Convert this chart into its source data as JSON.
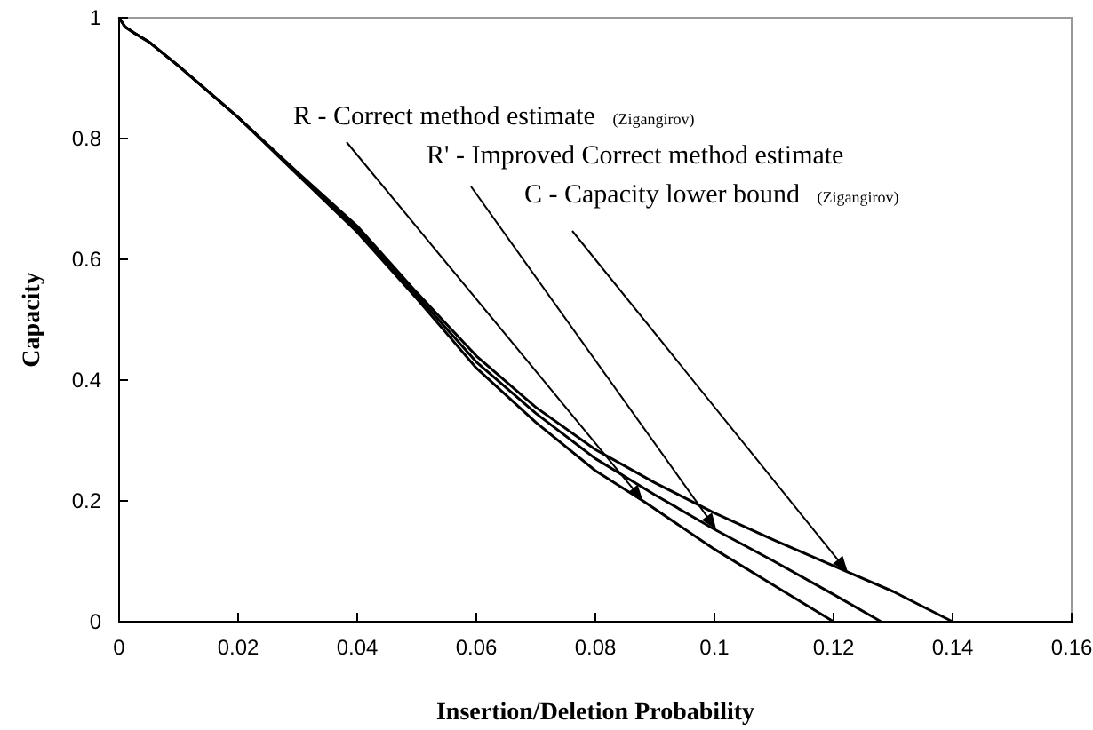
{
  "chart_data": {
    "type": "line",
    "xlabel": "Insertion/Deletion Probability",
    "ylabel": "Capacity",
    "xlim": [
      0,
      0.16
    ],
    "ylim": [
      0,
      1
    ],
    "xticks": [
      0,
      0.02,
      0.04,
      0.06,
      0.08,
      0.1,
      0.12,
      0.14,
      0.16
    ],
    "yticks": [
      0,
      0.2,
      0.4,
      0.6,
      0.8,
      1
    ],
    "grid": false,
    "marker": "none",
    "line_style": "solid",
    "series": [
      {
        "color": "#000000",
        "x": [
          0,
          0.001,
          0.0025,
          0.005,
          0.01,
          0.02,
          0.03,
          0.04,
          0.05,
          0.06,
          0.07,
          0.08,
          0.088,
          0.1,
          0.11,
          0.12
        ],
        "values": [
          1,
          0.985,
          0.975,
          0.96,
          0.92,
          0.835,
          0.74,
          0.645,
          0.535,
          0.42,
          0.33,
          0.25,
          0.2,
          0.12,
          0.06,
          0
        ]
      },
      {
        "color": "#000000",
        "x": [
          0,
          0.001,
          0.0025,
          0.005,
          0.01,
          0.02,
          0.03,
          0.04,
          0.05,
          0.06,
          0.07,
          0.08,
          0.09,
          0.1,
          0.11,
          0.12,
          0.128
        ],
        "values": [
          1,
          0.985,
          0.975,
          0.96,
          0.92,
          0.835,
          0.742,
          0.65,
          0.54,
          0.43,
          0.345,
          0.27,
          0.21,
          0.153,
          0.1,
          0.045,
          0
        ]
      },
      {
        "color": "#000000",
        "x": [
          0,
          0.001,
          0.0025,
          0.005,
          0.01,
          0.02,
          0.03,
          0.04,
          0.05,
          0.06,
          0.07,
          0.08,
          0.09,
          0.1,
          0.11,
          0.1224,
          0.13,
          0.14
        ],
        "values": [
          1,
          0.985,
          0.975,
          0.96,
          0.92,
          0.835,
          0.744,
          0.655,
          0.545,
          0.44,
          0.355,
          0.285,
          0.23,
          0.18,
          0.135,
          0.082,
          0.05,
          0
        ]
      }
    ],
    "annotations": [
      {
        "text": "R - Correct method estimate  (Zigangirov)",
        "x": 0.088,
        "y": 0.2
      },
      {
        "text": "R' - Improved Correct method estimate",
        "x": 0.1003,
        "y": 0.153
      },
      {
        "text": "C - Capacity lower bound  (Zigangirov)",
        "x": 0.1224,
        "y": 0.082
      }
    ]
  }
}
